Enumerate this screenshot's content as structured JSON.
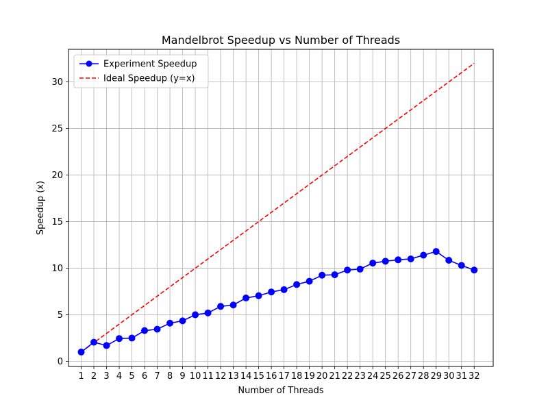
{
  "chart_data": {
    "type": "line",
    "title": "Mandelbrot Speedup vs Number of Threads",
    "xlabel": "Number of Threads",
    "ylabel": "Speedup (x)",
    "x": [
      1,
      2,
      3,
      4,
      5,
      6,
      7,
      8,
      9,
      10,
      11,
      12,
      13,
      14,
      15,
      16,
      17,
      18,
      19,
      20,
      21,
      22,
      23,
      24,
      25,
      26,
      27,
      28,
      29,
      30,
      31,
      32
    ],
    "xticks": [
      "1",
      "2",
      "3",
      "4",
      "5",
      "6",
      "7",
      "8",
      "9",
      "10",
      "11",
      "12",
      "13",
      "14",
      "15",
      "16",
      "17",
      "18",
      "19",
      "20",
      "21",
      "22",
      "23",
      "24",
      "25",
      "26",
      "27",
      "28",
      "29",
      "30",
      "31",
      "32"
    ],
    "yticks": [
      0,
      5,
      10,
      15,
      20,
      25,
      30
    ],
    "ytick_labels": [
      "0",
      "5",
      "10",
      "15",
      "20",
      "25",
      "30"
    ],
    "xlim": [
      0.0,
      33.5
    ],
    "ylim": [
      -0.55,
      33.5
    ],
    "grid": true,
    "legend_position": "upper-left",
    "series": [
      {
        "name": "Experiment Speedup",
        "color": "#0000ff",
        "style": "solid",
        "marker": "circle",
        "values": [
          1.0,
          2.05,
          1.7,
          2.45,
          2.5,
          3.3,
          3.45,
          4.1,
          4.35,
          5.0,
          5.2,
          5.9,
          6.05,
          6.8,
          7.05,
          7.45,
          7.7,
          8.25,
          8.6,
          9.25,
          9.3,
          9.8,
          9.9,
          10.55,
          10.75,
          10.9,
          11.0,
          11.4,
          11.8,
          10.85,
          10.3,
          9.8
        ]
      },
      {
        "name": "Ideal Speedup (y=x)",
        "color": "#ff0000",
        "style": "dashed",
        "marker": "none",
        "values": [
          1,
          2,
          3,
          4,
          5,
          6,
          7,
          8,
          9,
          10,
          11,
          12,
          13,
          14,
          15,
          16,
          17,
          18,
          19,
          20,
          21,
          22,
          23,
          24,
          25,
          26,
          27,
          28,
          29,
          30,
          31,
          32
        ]
      }
    ]
  }
}
